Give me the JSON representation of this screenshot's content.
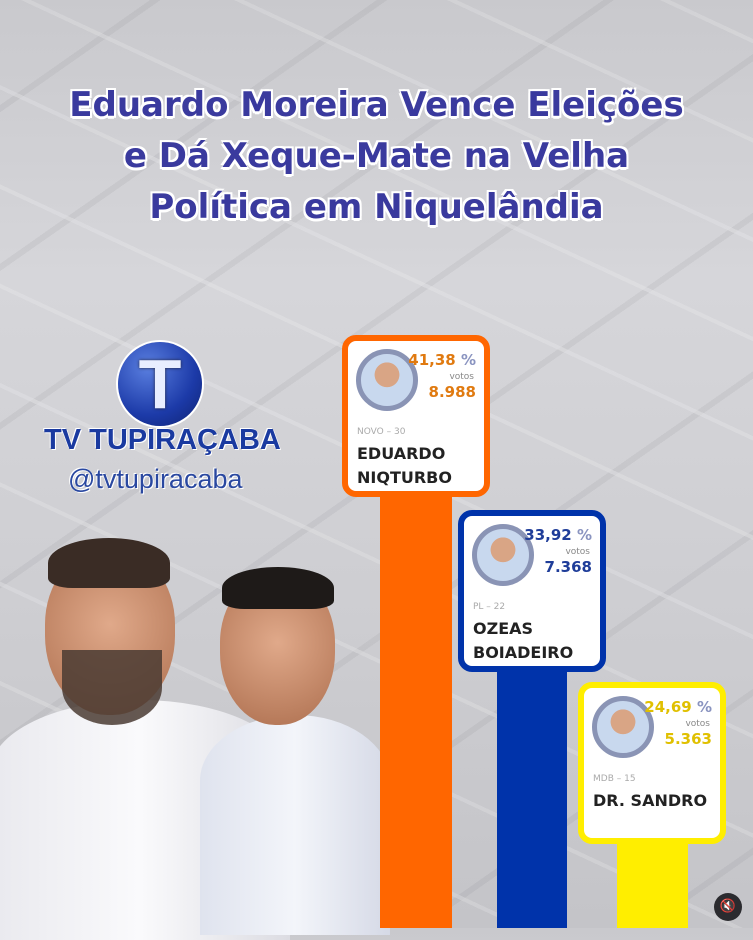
{
  "headline": [
    "Eduardo Moreira Vence Eleições",
    "e Dá Xeque-Mate na Velha",
    "Política em Niquelândia"
  ],
  "brand": {
    "logo_letter": "T",
    "name": "TV TUPIRAÇABA",
    "handle": "@tvtupiracaba"
  },
  "chart_data": {
    "type": "bar",
    "categories": [
      "EDUARDO NIQTURBO",
      "OZEAS BOIADEIRO",
      "DR. SANDRO"
    ],
    "values": [
      41.38,
      33.92,
      24.69
    ],
    "unit": "%",
    "candidates": [
      {
        "party": "NOVO – 30",
        "name_lines": [
          "EDUARDO",
          "NIQTURBO"
        ],
        "pct": "41,38",
        "pct_sign": "%",
        "votes_label": "votos",
        "votes": "8.988",
        "color": "#ff6600",
        "text_color": "#e07a10"
      },
      {
        "party": "PL – 22",
        "name_lines": [
          "OZEAS",
          "BOIADEIRO"
        ],
        "pct": "33,92",
        "pct_sign": "%",
        "votes_label": "votos",
        "votes": "7.368",
        "color": "#0033aa",
        "text_color": "#1f3d99"
      },
      {
        "party": "MDB – 15",
        "name_lines": [
          "DR. SANDRO",
          ""
        ],
        "pct": "24,69",
        "pct_sign": "%",
        "votes_label": "votos",
        "votes": "5.363",
        "color": "#ffee00",
        "text_color": "#e0c000"
      }
    ]
  },
  "icons": {
    "mute": "speaker-muted-icon"
  }
}
